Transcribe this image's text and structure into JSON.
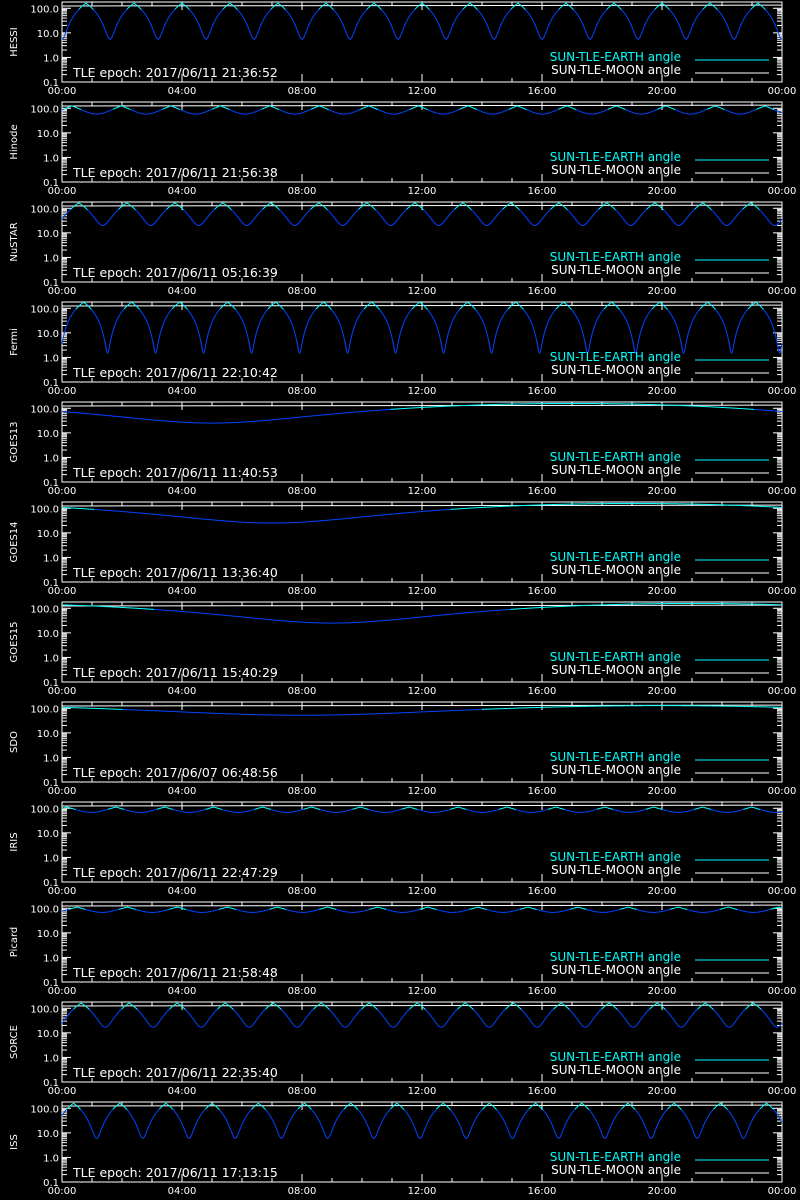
{
  "legend": {
    "earth": "SUN-TLE-EARTH angle",
    "moon": "SUN-TLE-MOON angle",
    "earth_color": "#00ffff",
    "moon_color": "#ffffff"
  },
  "colors": {
    "background": "#000000",
    "axis": "#ffffff",
    "sun_moon_curve": "#ffffff",
    "sun_earth_above": "#00ffff",
    "sun_earth_below": "#0044ff"
  },
  "chart_data": [
    {
      "type": "line",
      "satellite": "HESSI",
      "epoch": "TLE epoch: 2017/06/11 21:36:52",
      "yscale": "log",
      "ylim": [
        0.1,
        180
      ],
      "xlim": [
        0,
        24
      ],
      "x_ticks": [
        "00:00",
        "04:00",
        "08:00",
        "12:00",
        "16:00",
        "20:00",
        "00:00"
      ],
      "y_ticks": [
        "100.0",
        "10.0",
        "1.0",
        "0.1"
      ],
      "sun_moon_angle": [
        [
          0,
          124
        ],
        [
          24,
          134
        ]
      ],
      "sun_earth": {
        "shape": "orbit",
        "period_hours": 1.6,
        "phase": 0.0,
        "min_deg": 5.5,
        "max_deg": 160
      }
    },
    {
      "type": "line",
      "satellite": "Hinode",
      "epoch": "TLE epoch: 2017/06/11 21:56:38",
      "yscale": "log",
      "ylim": [
        0.1,
        180
      ],
      "xlim": [
        0,
        24
      ],
      "x_ticks": [
        "00:00",
        "04:00",
        "08:00",
        "12:00",
        "16:00",
        "20:00",
        "00:00"
      ],
      "y_ticks": [
        "100.0",
        "10.0",
        "1.0",
        "0.1"
      ],
      "sun_moon_angle": [
        [
          0,
          124
        ],
        [
          24,
          134
        ]
      ],
      "sun_earth": {
        "shape": "orbit",
        "period_hours": 1.65,
        "phase": 0.3,
        "min_deg": 58,
        "max_deg": 125
      }
    },
    {
      "type": "line",
      "satellite": "NuSTAR",
      "epoch": "TLE epoch: 2017/06/11 05:16:39",
      "yscale": "log",
      "ylim": [
        0.1,
        180
      ],
      "xlim": [
        0,
        24
      ],
      "x_ticks": [
        "00:00",
        "04:00",
        "08:00",
        "12:00",
        "16:00",
        "20:00",
        "00:00"
      ],
      "y_ticks": [
        "100.0",
        "10.0",
        "1.0",
        "0.1"
      ],
      "sun_moon_angle": [
        [
          0,
          124
        ],
        [
          24,
          134
        ]
      ],
      "sun_earth": {
        "shape": "orbit",
        "period_hours": 1.6,
        "phase": 0.15,
        "min_deg": 20,
        "max_deg": 165
      }
    },
    {
      "type": "line",
      "satellite": "Fermi",
      "epoch": "TLE epoch: 2017/06/11 22:10:42",
      "yscale": "log",
      "ylim": [
        0.1,
        180
      ],
      "xlim": [
        0,
        24
      ],
      "x_ticks": [
        "00:00",
        "04:00",
        "08:00",
        "12:00",
        "16:00",
        "20:00",
        "00:00"
      ],
      "y_ticks": [
        "100.0",
        "10.0",
        "1.0",
        "0.1"
      ],
      "sun_moon_angle": [
        [
          0,
          124
        ],
        [
          24,
          134
        ]
      ],
      "sun_earth": {
        "shape": "orbit",
        "period_hours": 1.6,
        "phase": 0.05,
        "min_deg": 1.5,
        "max_deg": 175
      }
    },
    {
      "type": "line",
      "satellite": "GOES13",
      "epoch": "TLE epoch: 2017/06/11 11:40:53",
      "yscale": "log",
      "ylim": [
        0.1,
        180
      ],
      "xlim": [
        0,
        24
      ],
      "x_ticks": [
        "00:00",
        "04:00",
        "08:00",
        "12:00",
        "16:00",
        "20:00",
        "00:00"
      ],
      "y_ticks": [
        "100.0",
        "10.0",
        "1.0",
        "0.1"
      ],
      "sun_moon_angle": [
        [
          0,
          124
        ],
        [
          24,
          134
        ]
      ],
      "sun_earth": {
        "shape": "geo",
        "min_time": 5.0,
        "min_deg": 25,
        "max_deg": 157
      }
    },
    {
      "type": "line",
      "satellite": "GOES14",
      "epoch": "TLE epoch: 2017/06/11 13:36:40",
      "yscale": "log",
      "ylim": [
        0.1,
        180
      ],
      "xlim": [
        0,
        24
      ],
      "x_ticks": [
        "00:00",
        "04:00",
        "08:00",
        "12:00",
        "16:00",
        "20:00",
        "00:00"
      ],
      "y_ticks": [
        "100.0",
        "10.0",
        "1.0",
        "0.1"
      ],
      "sun_moon_angle": [
        [
          0,
          124
        ],
        [
          24,
          134
        ]
      ],
      "sun_earth": {
        "shape": "geo",
        "min_time": 7.0,
        "min_deg": 25,
        "max_deg": 157
      }
    },
    {
      "type": "line",
      "satellite": "GOES15",
      "epoch": "TLE epoch: 2017/06/11 15:40:29",
      "yscale": "log",
      "ylim": [
        0.1,
        180
      ],
      "xlim": [
        0,
        24
      ],
      "x_ticks": [
        "00:00",
        "04:00",
        "08:00",
        "12:00",
        "16:00",
        "20:00",
        "00:00"
      ],
      "y_ticks": [
        "100.0",
        "10.0",
        "1.0",
        "0.1"
      ],
      "sun_moon_angle": [
        [
          0,
          124
        ],
        [
          24,
          134
        ]
      ],
      "sun_earth": {
        "shape": "geo",
        "min_time": 9.0,
        "min_deg": 25,
        "max_deg": 157
      }
    },
    {
      "type": "line",
      "satellite": "SDO",
      "epoch": "TLE epoch: 2017/06/07 06:48:56",
      "yscale": "log",
      "ylim": [
        0.1,
        180
      ],
      "xlim": [
        0,
        24
      ],
      "x_ticks": [
        "00:00",
        "04:00",
        "08:00",
        "12:00",
        "16:00",
        "20:00",
        "00:00"
      ],
      "y_ticks": [
        "100.0",
        "10.0",
        "1.0",
        "0.1"
      ],
      "sun_moon_angle": [
        [
          0,
          124
        ],
        [
          24,
          134
        ]
      ],
      "sun_earth": {
        "shape": "geo",
        "min_time": 8.0,
        "min_deg": 52,
        "max_deg": 128
      }
    },
    {
      "type": "line",
      "satellite": "IRIS",
      "epoch": "TLE epoch: 2017/06/11 22:47:29",
      "yscale": "log",
      "ylim": [
        0.1,
        180
      ],
      "xlim": [
        0,
        24
      ],
      "x_ticks": [
        "00:00",
        "04:00",
        "08:00",
        "12:00",
        "16:00",
        "20:00",
        "00:00"
      ],
      "y_ticks": [
        "100.0",
        "10.0",
        "1.0",
        "0.1"
      ],
      "sun_moon_angle": [
        [
          0,
          124
        ],
        [
          24,
          134
        ]
      ],
      "sun_earth": {
        "shape": "orbit",
        "period_hours": 1.63,
        "phase": 0.4,
        "min_deg": 68,
        "max_deg": 112
      }
    },
    {
      "type": "line",
      "satellite": "Picard",
      "epoch": "TLE epoch: 2017/06/11 21:58:48",
      "yscale": "log",
      "ylim": [
        0.1,
        180
      ],
      "xlim": [
        0,
        24
      ],
      "x_ticks": [
        "00:00",
        "04:00",
        "08:00",
        "12:00",
        "16:00",
        "20:00",
        "00:00"
      ],
      "y_ticks": [
        "100.0",
        "10.0",
        "1.0",
        "0.1"
      ],
      "sun_moon_angle": [
        [
          0,
          124
        ],
        [
          24,
          134
        ]
      ],
      "sun_earth": {
        "shape": "orbit",
        "period_hours": 1.67,
        "phase": 0.2,
        "min_deg": 68,
        "max_deg": 112
      }
    },
    {
      "type": "line",
      "satellite": "SORCE",
      "epoch": "TLE epoch: 2017/06/11 22:35:40",
      "yscale": "log",
      "ylim": [
        0.1,
        180
      ],
      "xlim": [
        0,
        24
      ],
      "x_ticks": [
        "00:00",
        "04:00",
        "08:00",
        "12:00",
        "16:00",
        "20:00",
        "00:00"
      ],
      "y_ticks": [
        "100.0",
        "10.0",
        "1.0",
        "0.1"
      ],
      "sun_moon_angle": [
        [
          0,
          124
        ],
        [
          24,
          134
        ]
      ],
      "sun_earth": {
        "shape": "orbit",
        "period_hours": 1.6,
        "phase": 0.1,
        "min_deg": 17,
        "max_deg": 163
      }
    },
    {
      "type": "line",
      "satellite": "ISS",
      "epoch": "TLE epoch: 2017/06/11 17:13:15",
      "yscale": "log",
      "ylim": [
        0.1,
        180
      ],
      "xlim": [
        0,
        24
      ],
      "x_ticks": [
        "00:00",
        "04:00",
        "08:00",
        "12:00",
        "16:00",
        "20:00",
        "00:00"
      ],
      "y_ticks": [
        "100.0",
        "10.0",
        "1.0",
        "0.1"
      ],
      "sun_moon_angle": [
        [
          0,
          124
        ],
        [
          24,
          134
        ]
      ],
      "sun_earth": {
        "shape": "orbit",
        "period_hours": 1.54,
        "phase": 0.25,
        "min_deg": 6,
        "max_deg": 160
      }
    }
  ]
}
